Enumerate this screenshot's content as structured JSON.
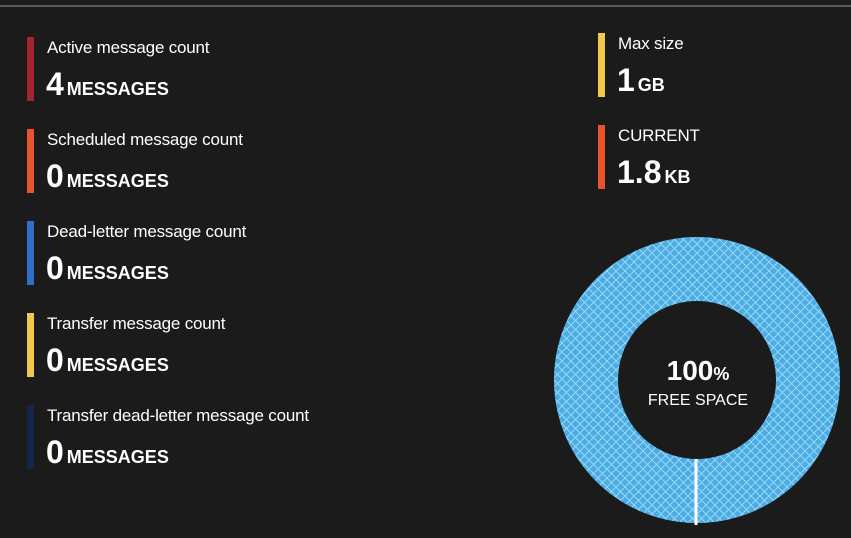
{
  "metrics": [
    {
      "label": "Active message count",
      "value": "4",
      "unit": "MESSAGES",
      "color": "#a4262c"
    },
    {
      "label": "Scheduled message count",
      "value": "0",
      "unit": "MESSAGES",
      "color": "#e8542c"
    },
    {
      "label": "Dead-letter message count",
      "value": "0",
      "unit": "MESSAGES",
      "color": "#2f6fc8"
    },
    {
      "label": "Transfer message count",
      "value": "0",
      "unit": "MESSAGES",
      "color": "#f2c94c"
    },
    {
      "label": "Transfer dead-letter message count",
      "value": "0",
      "unit": "MESSAGES",
      "color": "#14244a"
    }
  ],
  "size": {
    "max": {
      "label": "Max size",
      "value": "1",
      "unit": "GB",
      "color": "#f2c94c"
    },
    "current": {
      "label": "CURRENT",
      "value": "1.8",
      "unit": "KB",
      "color": "#e8542c"
    }
  },
  "donut": {
    "percent": "100",
    "percent_sign": "%",
    "label": "FREE SPACE",
    "fill_color": "#4aaee6",
    "free_fraction": 1.0
  }
}
